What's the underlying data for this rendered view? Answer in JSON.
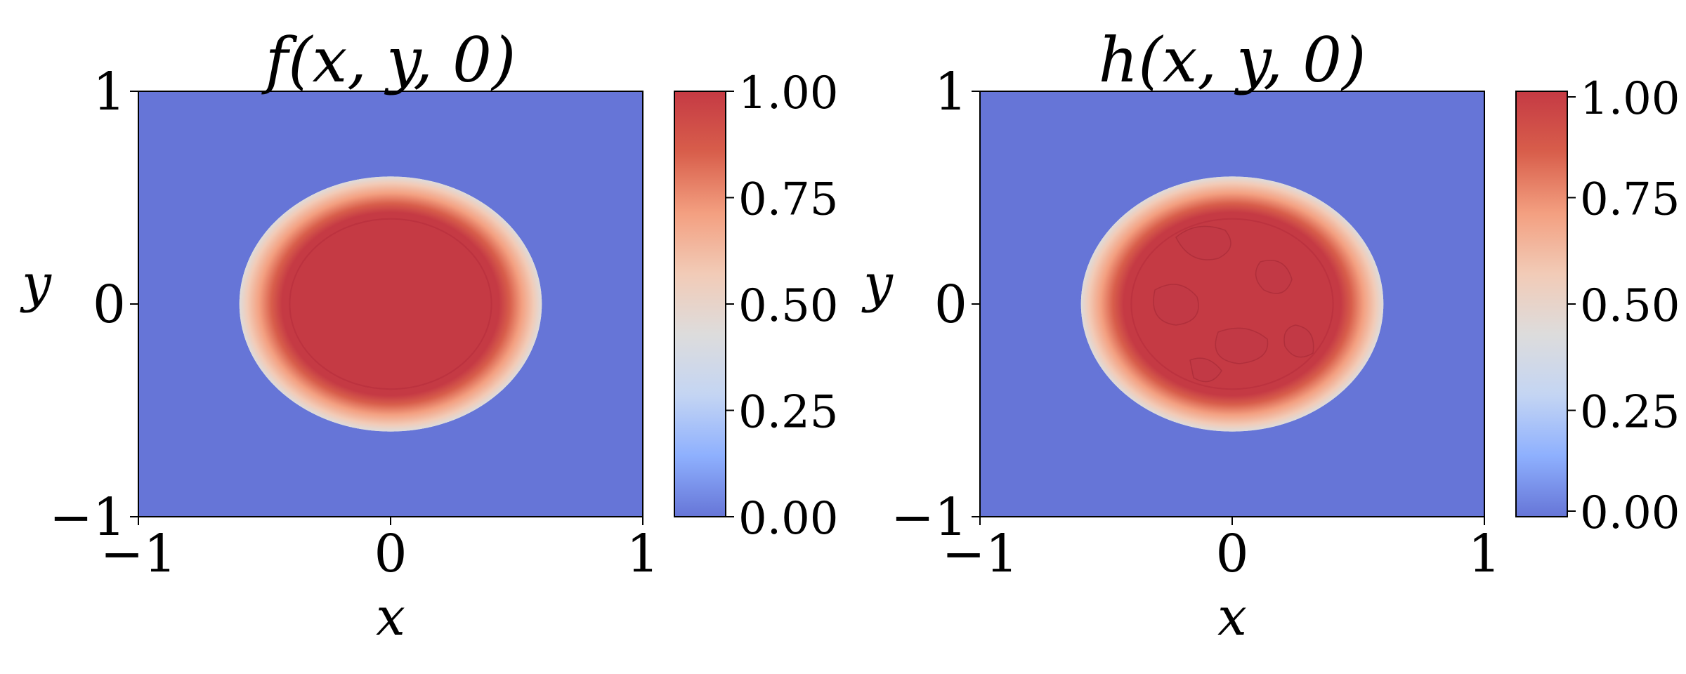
{
  "colormap": {
    "name": "coolwarm",
    "stops": [
      "#6675d7",
      "#8eb0fe",
      "#c4d5f3",
      "#dddcdc",
      "#f2cbb7",
      "#f39f80",
      "#d85e4b",
      "#c53a44"
    ]
  },
  "chart_data": [
    {
      "type": "heatmap",
      "title": "f(x, y, 0)",
      "xlabel": "x",
      "ylabel": "y",
      "xlim": [
        -1,
        1
      ],
      "ylim": [
        -1,
        1
      ],
      "xticks": [
        "−1",
        "0",
        "1"
      ],
      "yticks": [
        "−1",
        "0",
        "1"
      ],
      "colorbar": {
        "range": [
          0,
          1
        ],
        "ticks": [
          "0.00",
          "0.25",
          "0.50",
          "0.75",
          "1.00"
        ]
      },
      "field": {
        "shape": "disc",
        "center": [
          0,
          0
        ],
        "plateau_value": 1.0,
        "plateau_radius": 0.4,
        "outer_radius": 0.6,
        "background_value": 0.0,
        "noisy": false
      }
    },
    {
      "type": "heatmap",
      "title": "h(x, y, 0)",
      "xlabel": "x",
      "ylabel": "y",
      "xlim": [
        -1,
        1
      ],
      "ylim": [
        -1,
        1
      ],
      "xticks": [
        "−1",
        "0",
        "1"
      ],
      "yticks": [
        "−1",
        "0",
        "1"
      ],
      "colorbar": {
        "range": [
          0,
          1
        ],
        "ticks": [
          "0.00",
          "0.25",
          "0.50",
          "0.75",
          "1.00"
        ]
      },
      "field": {
        "shape": "disc",
        "center": [
          0,
          0
        ],
        "plateau_value": 1.0,
        "plateau_radius": 0.4,
        "outer_radius": 0.6,
        "background_value": 0.0,
        "noisy": true
      }
    }
  ]
}
